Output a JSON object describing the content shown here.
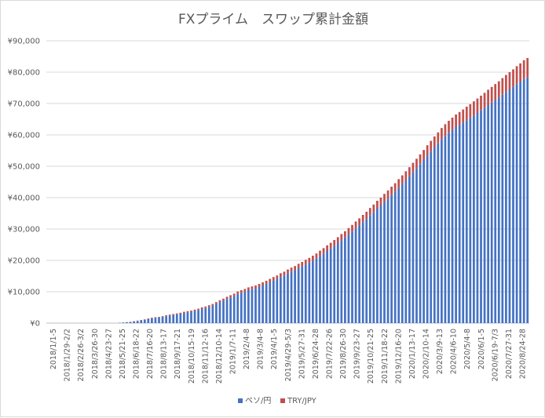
{
  "chart_data": {
    "type": "bar",
    "stacked": true,
    "title": "FXプライム　スワップ累計金額",
    "xlabel": "",
    "ylabel": "",
    "ylim": [
      0,
      90000
    ],
    "yticks": [
      0,
      10000,
      20000,
      30000,
      40000,
      50000,
      60000,
      70000,
      80000,
      90000
    ],
    "ytick_labels": [
      "¥0",
      "¥10,000",
      "¥20,000",
      "¥30,000",
      "¥40,000",
      "¥50,000",
      "¥60,000",
      "¥70,000",
      "¥80,000",
      "¥90,000"
    ],
    "grid": true,
    "legend_position": "bottom",
    "category_labels": [
      "2018/1/1-5",
      "2018/1/29-2/2",
      "2018/2/26-3/2",
      "2018/3/26-30",
      "2018/4/23-27",
      "2018/5/21-25",
      "2018/6/18-22",
      "2018/7/16-20",
      "2018/8/13-17",
      "2018/9/17-21",
      "2018/10/15-19",
      "2018/11/12-16",
      "2018/12/10-14",
      "2019/1/7-11",
      "2019/2/4-8",
      "2019/3/4-8",
      "2019/4/1-5",
      "2019/4/29-5/3",
      "2019/5/27-31",
      "2019/6/24-28",
      "2019/7/22-26",
      "2019/8/26-30",
      "2019/9/23-27",
      "2019/10/21-25",
      "2019/11/18-22",
      "2019/12/16-20",
      "2020/1/13-17",
      "2020/2/10-14",
      "2020/3/9-13",
      "2020/4/6-10",
      "2020/5/4-8",
      "2020/6/1-5",
      "2020/6/19-7/3",
      "2020/7/27-31",
      "2020/8/24-28"
    ],
    "series": [
      {
        "name": "ペソ/円",
        "color": "#4472c4",
        "values": [
          0,
          0,
          0,
          0,
          0,
          0,
          0,
          0,
          0,
          0,
          0,
          0,
          0,
          0,
          0,
          0,
          0,
          0,
          0,
          0,
          100,
          200,
          300,
          400,
          500,
          700,
          900,
          1100,
          1300,
          1500,
          1700,
          1800,
          2000,
          2200,
          2400,
          2600,
          2800,
          3000,
          3200,
          3400,
          3600,
          3900,
          4200,
          4500,
          4800,
          5200,
          5600,
          6100,
          6700,
          7200,
          7700,
          8200,
          8700,
          9300,
          9700,
          10100,
          10500,
          10800,
          11100,
          11500,
          12000,
          12500,
          13000,
          13600,
          14100,
          14700,
          15200,
          15800,
          16400,
          16900,
          17500,
          18100,
          18700,
          19300,
          19900,
          20600,
          21400,
          22200,
          23000,
          23800,
          24600,
          25500,
          26400,
          27300,
          28200,
          29200,
          30200,
          31200,
          32200,
          33200,
          34300,
          35400,
          36500,
          37500,
          38600,
          39700,
          40800,
          41900,
          43100,
          44300,
          45500,
          46800,
          48100,
          49400,
          50700,
          52000,
          53400,
          54700,
          56000,
          57300,
          58600,
          59700,
          60700,
          61600,
          62500,
          63200,
          63900,
          64700,
          65400,
          66200,
          67000,
          67800,
          68600,
          69500,
          70300,
          71100,
          71900,
          72800,
          73700,
          74500,
          75300,
          76200,
          77000,
          77800,
          78300
        ]
      },
      {
        "name": "TRY/JPY",
        "color": "#c0504d",
        "values": [
          0,
          0,
          0,
          0,
          0,
          0,
          0,
          0,
          0,
          0,
          0,
          0,
          0,
          0,
          0,
          0,
          0,
          0,
          0,
          0,
          0,
          0,
          0,
          0,
          100,
          100,
          100,
          100,
          200,
          200,
          200,
          200,
          200,
          300,
          300,
          300,
          300,
          300,
          400,
          400,
          400,
          400,
          400,
          500,
          500,
          500,
          500,
          600,
          600,
          600,
          700,
          700,
          700,
          800,
          800,
          800,
          900,
          900,
          900,
          1000,
          1000,
          1000,
          1100,
          1100,
          1100,
          1200,
          1200,
          1300,
          1300,
          1300,
          1400,
          1400,
          1500,
          1500,
          1600,
          1600,
          1700,
          1700,
          1800,
          1800,
          1900,
          1900,
          2000,
          2000,
          2100,
          2100,
          2200,
          2200,
          2300,
          2300,
          2400,
          2400,
          2500,
          2500,
          2600,
          2600,
          2700,
          2700,
          2800,
          2800,
          2900,
          2900,
          3000,
          3000,
          3100,
          3200,
          3300,
          3400,
          3500,
          3500,
          3600,
          3700,
          3800,
          3900,
          4000,
          4100,
          4200,
          4300,
          4400,
          4500,
          4600,
          4700,
          4800,
          4900,
          5000,
          5100,
          5200,
          5300,
          5400,
          5500,
          5600,
          5700,
          5800,
          6000,
          6200
        ]
      }
    ]
  }
}
